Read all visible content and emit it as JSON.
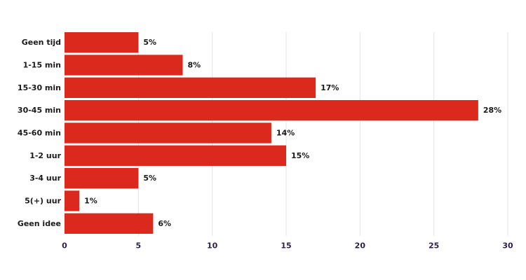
{
  "chart_data": {
    "type": "bar",
    "orientation": "horizontal",
    "categories": [
      "Geen tijd",
      "1-15 min",
      "15-30 min",
      "30-45 min",
      "45-60 min",
      "1-2 uur",
      "3-4 uur",
      "5(+) uur",
      "Geen idee"
    ],
    "values": [
      5,
      8,
      17,
      28,
      14,
      15,
      5,
      1,
      6
    ],
    "value_labels": [
      "5%",
      "8%",
      "17%",
      "28%",
      "14%",
      "15%",
      "5%",
      "1%",
      "6%"
    ],
    "xlim": [
      0,
      30
    ],
    "x_ticks": [
      0,
      5,
      10,
      15,
      20,
      25,
      30
    ],
    "x_tick_labels": [
      "0",
      "5",
      "10",
      "15",
      "20",
      "25",
      "30"
    ],
    "grid": "vertical",
    "bar_color": "#dc291e",
    "tick_color": "#2d1b54",
    "title": "",
    "xlabel": "",
    "ylabel": ""
  }
}
